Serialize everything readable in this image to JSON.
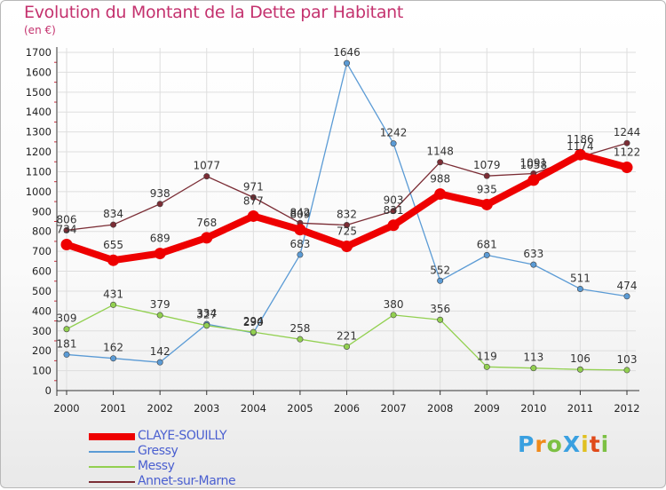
{
  "header": {
    "title": "Evolution du Montant de la Dette par Habitant",
    "subtitle": "(en €)"
  },
  "colors": {
    "title": "#c4326e",
    "legend_text": "#4a5fd0",
    "axis": "#333333",
    "grid": "#dedede",
    "tick_red": "#d03040"
  },
  "chart_data": {
    "type": "line",
    "title": "Evolution du Montant de la Dette par Habitant",
    "subtitle": "(en €)",
    "x": [
      "2000",
      "2001",
      "2002",
      "2003",
      "2004",
      "2005",
      "2006",
      "2007",
      "2008",
      "2009",
      "2010",
      "2011",
      "2012"
    ],
    "ylim": [
      0,
      1700
    ],
    "yticks": [
      0,
      100,
      200,
      300,
      400,
      500,
      600,
      700,
      800,
      900,
      1000,
      1100,
      1200,
      1300,
      1400,
      1500,
      1600,
      1700
    ],
    "grid": true,
    "legend_position": "bottom-left",
    "series": [
      {
        "name": "CLAYE-SOUILLY",
        "color": "#ee0000",
        "emphasis": true,
        "values": [
          734,
          655,
          689,
          768,
          877,
          809,
          725,
          831,
          988,
          935,
          1058,
          1186,
          1122
        ],
        "labels": [
          "734",
          "655",
          "689",
          "768",
          "877",
          "809",
          "725",
          "831",
          "988",
          "935",
          "1058",
          "1186",
          "1122"
        ]
      },
      {
        "name": "Gressy",
        "color": "#5b9bd5",
        "values": [
          181,
          162,
          142,
          334,
          290,
          683,
          1646,
          1242,
          552,
          681,
          633,
          511,
          474
        ],
        "labels": [
          "181",
          "162",
          "142",
          "334",
          "290",
          "683",
          "1646",
          "1242",
          "552",
          "681",
          "633",
          "511",
          "474"
        ]
      },
      {
        "name": "Messy",
        "color": "#92d050",
        "values": [
          309,
          431,
          379,
          327,
          294,
          258,
          221,
          380,
          356,
          119,
          113,
          106,
          103
        ],
        "labels": [
          "309",
          "431",
          "379",
          "327",
          "294",
          "258",
          "221",
          "380",
          "356",
          "119",
          "113",
          "106",
          "103"
        ]
      },
      {
        "name": "Annet-sur-Marne",
        "color": "#7b2d35",
        "values": [
          806,
          834,
          938,
          1077,
          971,
          842,
          832,
          903,
          1148,
          1079,
          1091,
          1174,
          1244
        ],
        "labels": [
          "806",
          "834",
          "938",
          "1077",
          "971",
          "842",
          "832",
          "903",
          "1148",
          "1079",
          "1091",
          "1174",
          "1244"
        ]
      }
    ]
  },
  "legend": {
    "items": [
      {
        "label": "CLAYE-SOUILLY",
        "color": "#ee0000"
      },
      {
        "label": "Gressy",
        "color": "#5b9bd5"
      },
      {
        "label": "Messy",
        "color": "#92d050"
      },
      {
        "label": "Annet-sur-Marne",
        "color": "#7b2d35"
      }
    ]
  },
  "logo": {
    "text": "ProXiti",
    "colors": [
      "#3aa0e0",
      "#f08a1a",
      "#7cc043",
      "#3aa0e0",
      "#e0c020",
      "#e04a1a",
      "#7cc043"
    ]
  }
}
